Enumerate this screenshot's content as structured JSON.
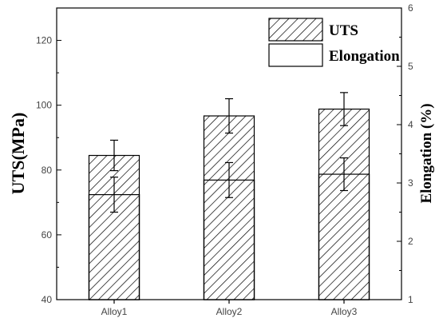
{
  "chart_data": {
    "type": "bar",
    "categories": [
      "Alloy1",
      "Alloy2",
      "Alloy3"
    ],
    "ylabel": "UTS(MPa)",
    "y2label": "Elongation (%)",
    "ylim": [
      40,
      130
    ],
    "y2lim": [
      1,
      6
    ],
    "yticks": [
      40,
      60,
      80,
      100,
      120
    ],
    "y2ticks": [
      1,
      2,
      3,
      4,
      5,
      6
    ],
    "series": [
      {
        "name": "UTS",
        "axis": "left",
        "pattern": "hatched",
        "values": [
          84.5,
          96.7,
          98.8
        ],
        "errors": [
          4.7,
          5.3,
          5.1
        ]
      },
      {
        "name": "Elongation",
        "axis": "right",
        "pattern": "open",
        "values": [
          2.8,
          3.05,
          3.15
        ],
        "errors": [
          0.3,
          0.3,
          0.28
        ]
      }
    ],
    "legend_position": "top-right",
    "grid": false
  }
}
